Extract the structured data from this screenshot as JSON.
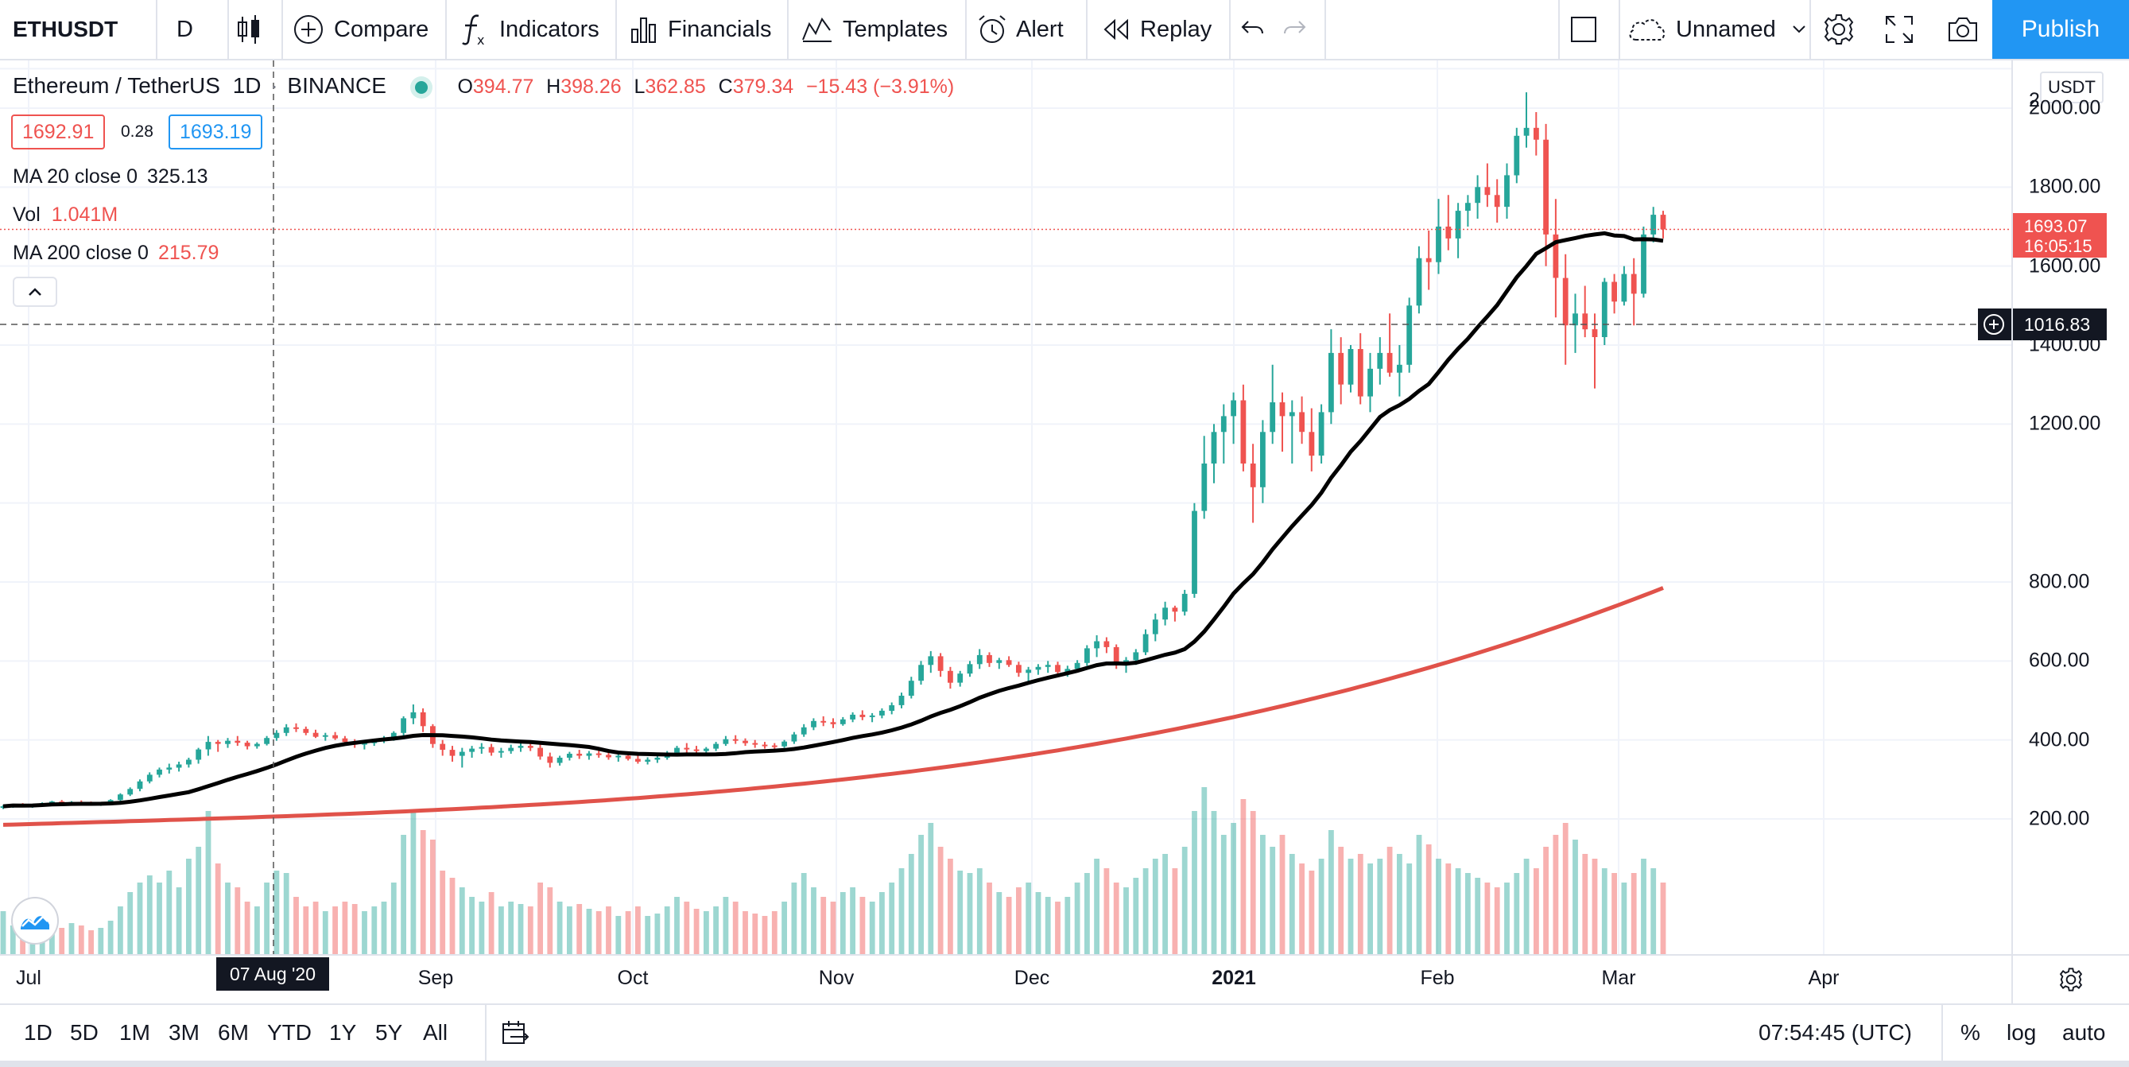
{
  "toolbar": {
    "symbol": "ETHUSDT",
    "interval": "D",
    "compare": "Compare",
    "indicators": "Indicators",
    "financials": "Financials",
    "templates": "Templates",
    "alert": "Alert",
    "replay": "Replay",
    "layout_name": "Unnamed",
    "publish": "Publish"
  },
  "legend": {
    "pair": "Ethereum / TetherUS",
    "interval": "1D",
    "exchange": "BINANCE",
    "o_label": "O",
    "o": "394.77",
    "h_label": "H",
    "h": "398.26",
    "l_label": "L",
    "l": "362.85",
    "c_label": "C",
    "c": "379.34",
    "change": "−15.43 (−3.91%)",
    "bid": "1692.91",
    "spread": "0.28",
    "ask": "1693.19",
    "ma20_label": "MA 20 close 0",
    "ma20_value": "325.13",
    "vol_label": "Vol",
    "vol_value": "1.041M",
    "ma200_label": "MA 200 close 0",
    "ma200_value": "215.79"
  },
  "price_scale": {
    "currency": "USDT",
    "labels": [
      "2000.00",
      "1800.00",
      "1600.00",
      "1400.00",
      "1200.00",
      "800.00",
      "600.00",
      "400.00",
      "200.00"
    ],
    "top_partial": "2",
    "last_price": "1693.07",
    "countdown": "16:05:15",
    "crosshair_price": "1016.83"
  },
  "time_axis": {
    "labels": [
      "Jul",
      "Sep",
      "Oct",
      "Nov",
      "Dec",
      "2021",
      "Feb",
      "Mar",
      "Apr"
    ],
    "crosshair_date": "07 Aug '20"
  },
  "bottom": {
    "ranges": [
      "1D",
      "5D",
      "1M",
      "3M",
      "6M",
      "YTD",
      "1Y",
      "5Y",
      "All"
    ],
    "clock": "07:54:45 (UTC)",
    "percent": "%",
    "log": "log",
    "auto": "auto"
  },
  "colors": {
    "up": "#26a69a",
    "down": "#ef5350",
    "ma20": "#000000",
    "ma200": "#e0524a",
    "accent": "#2196f3"
  },
  "chart_data": {
    "type": "candlestick",
    "y_range": [
      0,
      2100
    ],
    "ohlc": [
      [
        230,
        235,
        225,
        232
      ],
      [
        232,
        238,
        228,
        236
      ],
      [
        236,
        240,
        230,
        233
      ],
      [
        233,
        236,
        228,
        235
      ],
      [
        235,
        242,
        232,
        240
      ],
      [
        240,
        246,
        236,
        244
      ],
      [
        244,
        248,
        238,
        241
      ],
      [
        241,
        245,
        236,
        243
      ],
      [
        243,
        247,
        238,
        240
      ],
      [
        240,
        244,
        235,
        238
      ],
      [
        238,
        242,
        233,
        240
      ],
      [
        240,
        250,
        238,
        248
      ],
      [
        248,
        265,
        244,
        262
      ],
      [
        262,
        280,
        258,
        276
      ],
      [
        276,
        300,
        270,
        295
      ],
      [
        295,
        318,
        290,
        312
      ],
      [
        312,
        330,
        305,
        325
      ],
      [
        325,
        340,
        315,
        330
      ],
      [
        330,
        345,
        320,
        338
      ],
      [
        338,
        355,
        330,
        350
      ],
      [
        350,
        380,
        340,
        376
      ],
      [
        376,
        410,
        360,
        395
      ],
      [
        395,
        400,
        370,
        390
      ],
      [
        390,
        405,
        380,
        398
      ],
      [
        398,
        410,
        385,
        393
      ],
      [
        393,
        398,
        376,
        384
      ],
      [
        384,
        394,
        378,
        390
      ],
      [
        390,
        410,
        386,
        405
      ],
      [
        405,
        425,
        398,
        418
      ],
      [
        418,
        440,
        410,
        432
      ],
      [
        432,
        442,
        420,
        428
      ],
      [
        428,
        434,
        412,
        418
      ],
      [
        418,
        426,
        405,
        408
      ],
      [
        408,
        418,
        398,
        412
      ],
      [
        412,
        420,
        400,
        404
      ],
      [
        404,
        410,
        388,
        395
      ],
      [
        395,
        402,
        380,
        388
      ],
      [
        388,
        396,
        376,
        392
      ],
      [
        392,
        402,
        385,
        398
      ],
      [
        398,
        410,
        392,
        404
      ],
      [
        404,
        422,
        398,
        418
      ],
      [
        418,
        460,
        410,
        455
      ],
      [
        455,
        490,
        440,
        470
      ],
      [
        470,
        480,
        420,
        435
      ],
      [
        435,
        440,
        380,
        390
      ],
      [
        390,
        400,
        360,
        375
      ],
      [
        375,
        385,
        345,
        360
      ],
      [
        360,
        380,
        330,
        370
      ],
      [
        370,
        385,
        355,
        378
      ],
      [
        378,
        392,
        365,
        382
      ],
      [
        382,
        390,
        360,
        368
      ],
      [
        368,
        380,
        355,
        372
      ],
      [
        372,
        388,
        365,
        380
      ],
      [
        380,
        392,
        370,
        385
      ],
      [
        385,
        395,
        372,
        380
      ],
      [
        380,
        390,
        350,
        358
      ],
      [
        358,
        368,
        330,
        342
      ],
      [
        342,
        360,
        335,
        355
      ],
      [
        355,
        370,
        348,
        365
      ],
      [
        365,
        375,
        352,
        360
      ],
      [
        360,
        372,
        350,
        366
      ],
      [
        366,
        378,
        355,
        362
      ],
      [
        362,
        370,
        350,
        356
      ],
      [
        356,
        365,
        345,
        360
      ],
      [
        360,
        368,
        348,
        352
      ],
      [
        352,
        362,
        340,
        345
      ],
      [
        345,
        356,
        338,
        350
      ],
      [
        350,
        362,
        342,
        355
      ],
      [
        355,
        372,
        350,
        368
      ],
      [
        368,
        385,
        360,
        380
      ],
      [
        380,
        392,
        368,
        376
      ],
      [
        376,
        385,
        365,
        372
      ],
      [
        372,
        382,
        362,
        378
      ],
      [
        378,
        395,
        372,
        390
      ],
      [
        390,
        410,
        385,
        402
      ],
      [
        402,
        412,
        390,
        398
      ],
      [
        398,
        404,
        385,
        392
      ],
      [
        392,
        400,
        380,
        388
      ],
      [
        388,
        395,
        378,
        386
      ],
      [
        386,
        392,
        375,
        384
      ],
      [
        384,
        400,
        380,
        396
      ],
      [
        396,
        420,
        390,
        414
      ],
      [
        414,
        440,
        408,
        432
      ],
      [
        432,
        455,
        425,
        448
      ],
      [
        448,
        460,
        435,
        445
      ],
      [
        445,
        455,
        430,
        440
      ],
      [
        440,
        458,
        436,
        452
      ],
      [
        452,
        470,
        445,
        464
      ],
      [
        464,
        475,
        450,
        458
      ],
      [
        458,
        468,
        445,
        462
      ],
      [
        462,
        480,
        455,
        474
      ],
      [
        474,
        495,
        465,
        488
      ],
      [
        488,
        520,
        480,
        512
      ],
      [
        512,
        560,
        505,
        550
      ],
      [
        550,
        600,
        540,
        590
      ],
      [
        590,
        625,
        570,
        612
      ],
      [
        612,
        620,
        560,
        575
      ],
      [
        575,
        585,
        530,
        545
      ],
      [
        545,
        575,
        535,
        568
      ],
      [
        568,
        600,
        560,
        592
      ],
      [
        592,
        630,
        580,
        615
      ],
      [
        615,
        622,
        585,
        595
      ],
      [
        595,
        608,
        580,
        602
      ],
      [
        602,
        612,
        585,
        590
      ],
      [
        590,
        598,
        560,
        570
      ],
      [
        570,
        585,
        545,
        578
      ],
      [
        578,
        592,
        565,
        585
      ],
      [
        585,
        600,
        570,
        590
      ],
      [
        590,
        598,
        560,
        572
      ],
      [
        572,
        588,
        560,
        580
      ],
      [
        580,
        602,
        572,
        595
      ],
      [
        595,
        640,
        588,
        632
      ],
      [
        632,
        665,
        610,
        650
      ],
      [
        650,
        660,
        620,
        635
      ],
      [
        635,
        642,
        580,
        595
      ],
      [
        595,
        610,
        570,
        602
      ],
      [
        602,
        630,
        590,
        622
      ],
      [
        622,
        680,
        615,
        668
      ],
      [
        668,
        720,
        650,
        705
      ],
      [
        705,
        750,
        690,
        735
      ],
      [
        735,
        740,
        700,
        725
      ],
      [
        725,
        780,
        715,
        770
      ],
      [
        770,
        1000,
        760,
        980
      ],
      [
        980,
        1170,
        960,
        1100
      ],
      [
        1100,
        1200,
        1050,
        1180
      ],
      [
        1180,
        1250,
        1100,
        1220
      ],
      [
        1220,
        1280,
        1150,
        1260
      ],
      [
        1260,
        1300,
        1080,
        1100
      ],
      [
        1100,
        1150,
        950,
        1040
      ],
      [
        1040,
        1210,
        1000,
        1180
      ],
      [
        1180,
        1350,
        1150,
        1255
      ],
      [
        1255,
        1280,
        1130,
        1220
      ],
      [
        1220,
        1260,
        1100,
        1230
      ],
      [
        1230,
        1270,
        1150,
        1180
      ],
      [
        1180,
        1240,
        1080,
        1120
      ],
      [
        1120,
        1250,
        1100,
        1230
      ],
      [
        1230,
        1440,
        1200,
        1380
      ],
      [
        1380,
        1420,
        1250,
        1300
      ],
      [
        1300,
        1400,
        1280,
        1390
      ],
      [
        1390,
        1430,
        1250,
        1270
      ],
      [
        1270,
        1380,
        1230,
        1340
      ],
      [
        1340,
        1420,
        1300,
        1380
      ],
      [
        1380,
        1480,
        1320,
        1330
      ],
      [
        1330,
        1400,
        1270,
        1350
      ],
      [
        1350,
        1520,
        1330,
        1500
      ],
      [
        1500,
        1650,
        1480,
        1620
      ],
      [
        1620,
        1690,
        1540,
        1610
      ],
      [
        1610,
        1770,
        1580,
        1700
      ],
      [
        1700,
        1780,
        1640,
        1670
      ],
      [
        1670,
        1760,
        1620,
        1740
      ],
      [
        1740,
        1780,
        1700,
        1760
      ],
      [
        1760,
        1830,
        1720,
        1800
      ],
      [
        1800,
        1860,
        1750,
        1780
      ],
      [
        1780,
        1820,
        1710,
        1750
      ],
      [
        1750,
        1860,
        1720,
        1830
      ],
      [
        1830,
        1950,
        1810,
        1930
      ],
      [
        1930,
        2040,
        1900,
        1950
      ],
      [
        1950,
        1990,
        1880,
        1920
      ],
      [
        1920,
        1960,
        1600,
        1680
      ],
      [
        1680,
        1770,
        1470,
        1570
      ],
      [
        1570,
        1630,
        1350,
        1450
      ],
      [
        1450,
        1530,
        1380,
        1480
      ],
      [
        1480,
        1550,
        1420,
        1440
      ],
      [
        1440,
        1480,
        1290,
        1420
      ],
      [
        1420,
        1570,
        1400,
        1560
      ],
      [
        1560,
        1580,
        1480,
        1510
      ],
      [
        1510,
        1600,
        1500,
        1580
      ],
      [
        1580,
        1620,
        1450,
        1530
      ],
      [
        1530,
        1700,
        1520,
        1680
      ],
      [
        1680,
        1750,
        1660,
        1730
      ],
      [
        1730,
        1740,
        1670,
        1693
      ]
    ],
    "volume": [
      0.18,
      0.12,
      0.15,
      0.1,
      0.14,
      0.16,
      0.11,
      0.13,
      0.12,
      0.1,
      0.11,
      0.14,
      0.2,
      0.26,
      0.3,
      0.33,
      0.3,
      0.35,
      0.28,
      0.4,
      0.45,
      0.6,
      0.38,
      0.3,
      0.28,
      0.22,
      0.2,
      0.3,
      0.35,
      0.34,
      0.24,
      0.2,
      0.22,
      0.18,
      0.2,
      0.22,
      0.21,
      0.18,
      0.2,
      0.22,
      0.3,
      0.5,
      0.6,
      0.52,
      0.48,
      0.35,
      0.32,
      0.28,
      0.24,
      0.22,
      0.26,
      0.2,
      0.22,
      0.21,
      0.2,
      0.3,
      0.28,
      0.22,
      0.2,
      0.21,
      0.19,
      0.18,
      0.2,
      0.16,
      0.18,
      0.2,
      0.16,
      0.17,
      0.2,
      0.24,
      0.22,
      0.19,
      0.18,
      0.2,
      0.24,
      0.22,
      0.18,
      0.17,
      0.16,
      0.18,
      0.22,
      0.3,
      0.34,
      0.28,
      0.24,
      0.22,
      0.26,
      0.28,
      0.24,
      0.22,
      0.26,
      0.3,
      0.36,
      0.42,
      0.5,
      0.55,
      0.45,
      0.4,
      0.35,
      0.34,
      0.36,
      0.3,
      0.26,
      0.24,
      0.28,
      0.3,
      0.26,
      0.24,
      0.22,
      0.24,
      0.3,
      0.34,
      0.4,
      0.36,
      0.3,
      0.28,
      0.32,
      0.36,
      0.4,
      0.42,
      0.36,
      0.45,
      0.6,
      0.7,
      0.6,
      0.5,
      0.55,
      0.65,
      0.6,
      0.5,
      0.45,
      0.5,
      0.42,
      0.38,
      0.35,
      0.4,
      0.52,
      0.45,
      0.4,
      0.42,
      0.38,
      0.4,
      0.45,
      0.42,
      0.38,
      0.5,
      0.46,
      0.4,
      0.38,
      0.36,
      0.34,
      0.32,
      0.3,
      0.28,
      0.3,
      0.34,
      0.4,
      0.36,
      0.45,
      0.5,
      0.55,
      0.48,
      0.42,
      0.4,
      0.36,
      0.34,
      0.3,
      0.34,
      0.4,
      0.36,
      0.3
    ]
  }
}
